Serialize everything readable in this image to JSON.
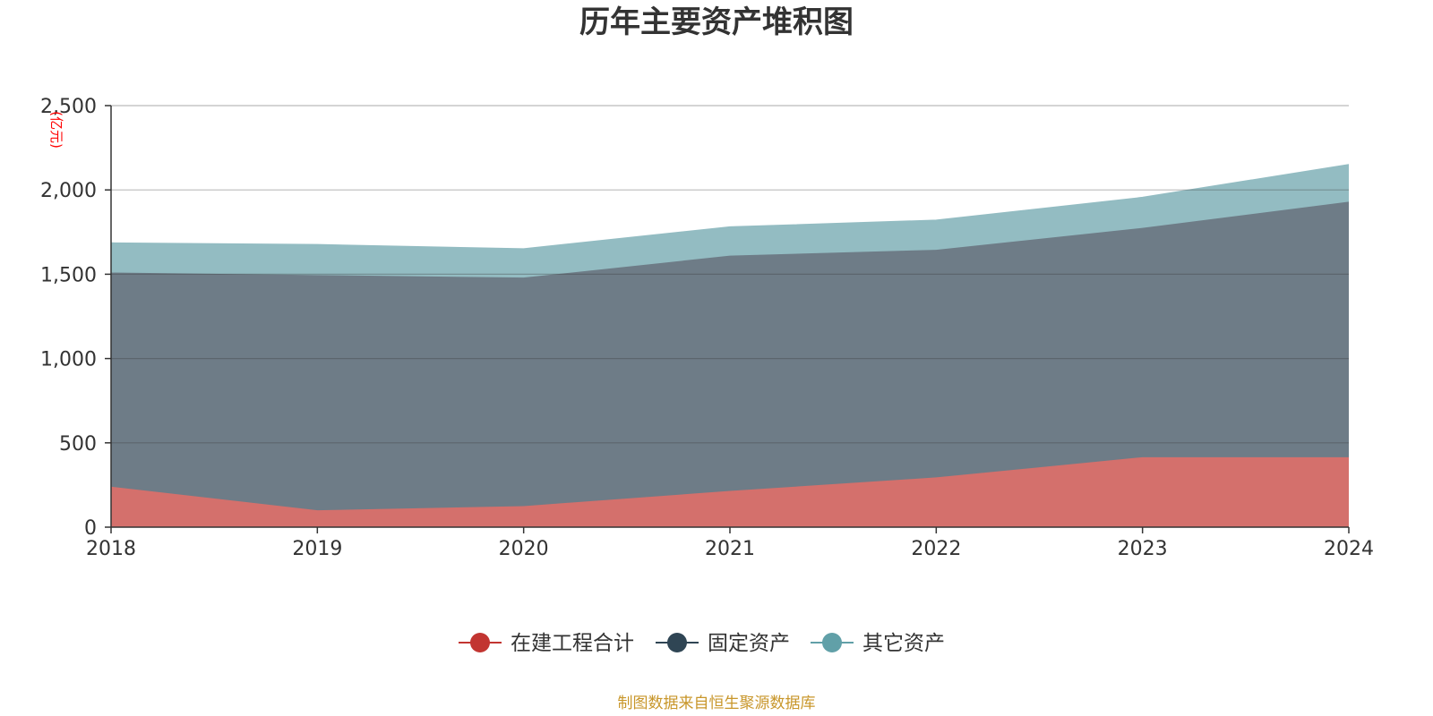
{
  "chart_data": {
    "type": "area",
    "stacked": true,
    "title": "历年主要资产堆积图",
    "unit_label": "(亿元)",
    "categories": [
      "2018",
      "2019",
      "2020",
      "2021",
      "2022",
      "2023",
      "2024"
    ],
    "ylim": [
      0,
      2500
    ],
    "yticks": [
      0,
      500,
      1000,
      1500,
      2000,
      2500
    ],
    "ytick_labels": [
      "0",
      "500",
      "1,000",
      "1,500",
      "2,000",
      "2,500"
    ],
    "grid": true,
    "legend_position": "bottom-center",
    "series": [
      {
        "name": "在建工程合计",
        "color": "#c23531",
        "fill": "#d4706c",
        "values": [
          240,
          100,
          125,
          215,
          295,
          415,
          415
        ]
      },
      {
        "name": "固定资产",
        "color": "#2f4554",
        "fill": "#6e7c87",
        "values": [
          1270,
          1395,
          1355,
          1395,
          1350,
          1360,
          1515
        ]
      },
      {
        "name": "其它资产",
        "color": "#61a0a8",
        "fill": "#93bcc2",
        "values": [
          175,
          180,
          170,
          170,
          175,
          180,
          220
        ]
      }
    ]
  },
  "source_note": "制图数据来自恒生聚源数据库"
}
